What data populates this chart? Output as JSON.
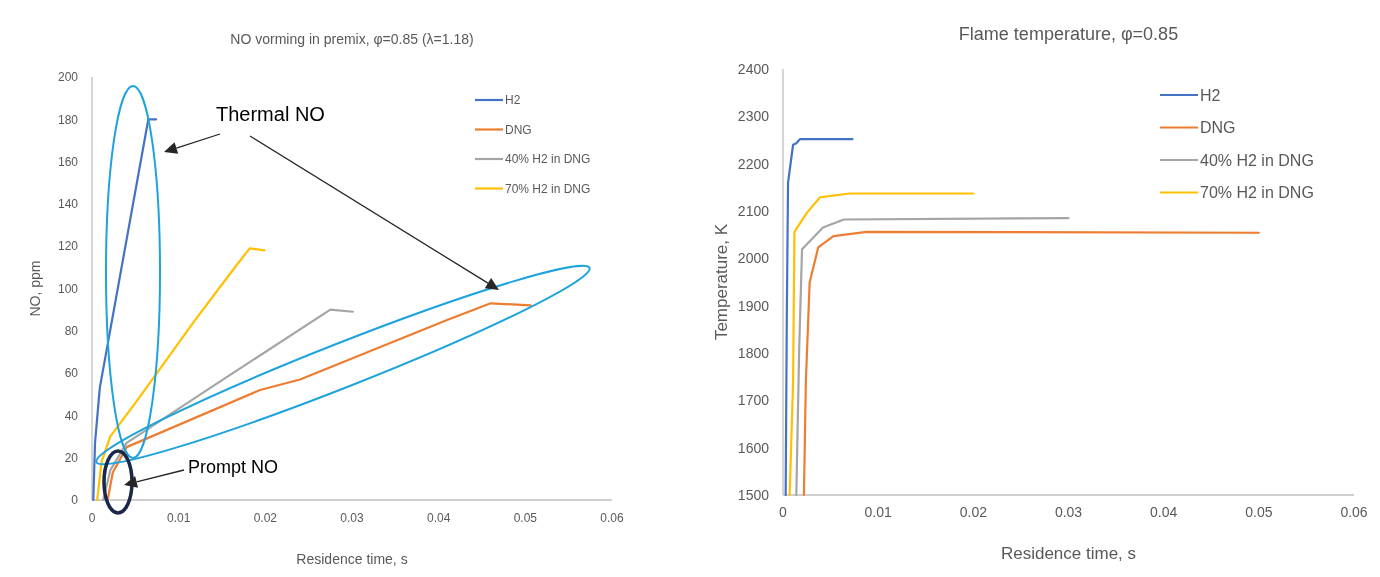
{
  "chart_data": [
    {
      "type": "line",
      "title": "NO vorming in premix, φ=0.85 (λ=1.18)",
      "xlabel": "Residence time, s",
      "ylabel": "NO, ppm",
      "xlim": [
        0,
        0.06
      ],
      "xticks": [
        0,
        0.01,
        0.02,
        0.03,
        0.04,
        0.05,
        0.06
      ],
      "ylim": [
        0,
        200
      ],
      "yticks": [
        0,
        20,
        40,
        60,
        80,
        100,
        120,
        140,
        160,
        180,
        200
      ],
      "grid": false,
      "legend": "top right",
      "line_style": "solid",
      "marker": "none",
      "annotations": [
        "Thermal NO",
        "Prompt NO"
      ],
      "series": [
        {
          "name": "H2",
          "color": "#4472c4",
          "x": [
            0.00015,
            0.00035,
            0.0009,
            0.0065,
            0.0074
          ],
          "values": [
            0,
            27,
            53,
            180,
            180
          ]
        },
        {
          "name": "DNG",
          "color": "#ed7d31",
          "x": [
            0.0018,
            0.0024,
            0.004,
            0.0194,
            0.024,
            0.0409,
            0.046,
            0.0506
          ],
          "values": [
            0,
            13,
            25,
            52,
            57,
            85,
            93,
            92
          ]
        },
        {
          "name": "40% H2 in DNG",
          "color": "#a5a5a5",
          "x": [
            0.0013,
            0.0021,
            0.004,
            0.0155,
            0.0275,
            0.0301
          ],
          "values": [
            0,
            14,
            27,
            58,
            90,
            89
          ]
        },
        {
          "name": "70% H2 in DNG",
          "color": "#ffc000",
          "x": [
            0.0006,
            0.0011,
            0.0021,
            0.0052,
            0.0117,
            0.0163,
            0.0182,
            0.0199
          ],
          "values": [
            0,
            18,
            30,
            47,
            84,
            109,
            119,
            118
          ]
        }
      ]
    },
    {
      "type": "line",
      "title": "Flame temperature, φ=0.85",
      "xlabel": "Residence time, s",
      "ylabel": "Temperature, K",
      "xlim": [
        0,
        0.06
      ],
      "xticks": [
        0,
        0.01,
        0.02,
        0.03,
        0.04,
        0.05,
        0.06
      ],
      "ylim": [
        1500,
        2400
      ],
      "yticks": [
        1500,
        1600,
        1700,
        1800,
        1900,
        2000,
        2100,
        2200,
        2300,
        2400
      ],
      "grid": false,
      "legend": "top right",
      "line_style": "solid",
      "marker": "none",
      "series": [
        {
          "name": "H2",
          "color": "#4472c4",
          "x": [
            0.00028,
            0.0004,
            0.00053,
            0.00106,
            0.0014,
            0.0018,
            0.0073
          ],
          "values": [
            1500,
            1878,
            2160,
            2240,
            2243,
            2252,
            2252
          ]
        },
        {
          "name": "DNG",
          "color": "#ed7d31",
          "x": [
            0.0022,
            0.0024,
            0.0028,
            0.0037,
            0.0053,
            0.0088,
            0.05
          ],
          "values": [
            1500,
            1738,
            1949,
            2023,
            2047,
            2056,
            2054
          ]
        },
        {
          "name": "40% H2 in DNG",
          "color": "#a5a5a5",
          "x": [
            0.0014,
            0.0017,
            0.002,
            0.0042,
            0.0064,
            0.03
          ],
          "values": [
            1500,
            1808,
            2019,
            2065,
            2082,
            2085
          ]
        },
        {
          "name": "70% H2 in DNG",
          "color": "#ffc000",
          "x": [
            0.0007,
            0.00106,
            0.0012,
            0.0025,
            0.0039,
            0.007,
            0.02
          ],
          "values": [
            1500,
            1738,
            2056,
            2096,
            2129,
            2137,
            2137
          ]
        }
      ]
    }
  ]
}
